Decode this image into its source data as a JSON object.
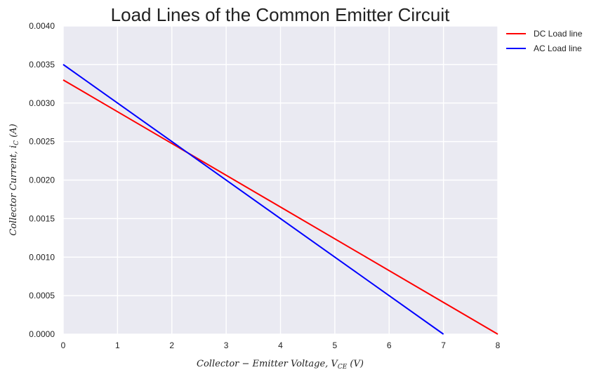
{
  "chart_data": {
    "type": "line",
    "title": "Load Lines of the Common Emitter Circuit",
    "xlabel": "Collector − Emitter Voltage, V",
    "xlabel_sub": "CE",
    "xlabel_unit": " (V)",
    "ylabel": "Collector Current, i",
    "ylabel_sub": "C",
    "ylabel_unit": " (A)",
    "xlim": [
      0,
      8
    ],
    "ylim": [
      0,
      0.004
    ],
    "xticks": [
      "0",
      "1",
      "2",
      "3",
      "4",
      "5",
      "6",
      "7",
      "8"
    ],
    "yticks": [
      "0.0000",
      "0.0005",
      "0.0010",
      "0.0015",
      "0.0020",
      "0.0025",
      "0.0030",
      "0.0035",
      "0.0040"
    ],
    "grid": true,
    "legend_position": "outside-top-right",
    "series": [
      {
        "name": "DC Load line",
        "color": "#ff0000",
        "x": [
          0,
          8
        ],
        "y": [
          0.0033,
          0.0
        ]
      },
      {
        "name": "AC Load line",
        "color": "#0000ff",
        "x": [
          0,
          7
        ],
        "y": [
          0.0035,
          0.0
        ]
      }
    ]
  },
  "colors": {
    "plot_background": "#eaeaf2",
    "grid": "#ffffff"
  }
}
